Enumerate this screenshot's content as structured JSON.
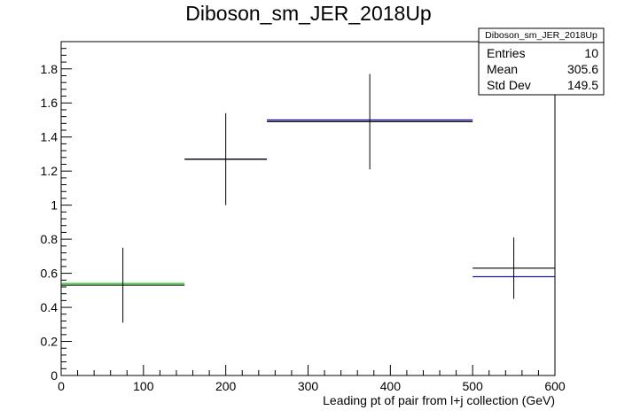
{
  "chart_data": {
    "type": "histogram",
    "title": "Diboson_sm_JER_2018Up",
    "xlabel": "Leading pt of pair from l+j collection (GeV)",
    "ylabel": "",
    "xlim": [
      0,
      600
    ],
    "ylim": [
      0,
      1.96
    ],
    "x_ticks": [
      0,
      100,
      200,
      300,
      400,
      500,
      600
    ],
    "y_ticks": [
      0,
      0.2,
      0.4,
      0.6,
      0.8,
      1,
      1.2,
      1.4,
      1.6,
      1.8
    ],
    "x_tick_labels": [
      "0",
      "100",
      "200",
      "300",
      "400",
      "500",
      "600"
    ],
    "y_tick_labels": [
      "0",
      "0.2",
      "0.4",
      "0.6",
      "0.8",
      "1",
      "1.2",
      "1.4",
      "1.6",
      "1.8"
    ],
    "grid": false,
    "series": [
      {
        "color": "#000000",
        "bins": [
          {
            "xlow": 0,
            "xhigh": 150,
            "value": 0.53,
            "err_low": 0.31,
            "err_high": 0.75
          },
          {
            "xlow": 150,
            "xhigh": 250,
            "value": 1.27,
            "err_low": 1.0,
            "err_high": 1.54
          },
          {
            "xlow": 250,
            "xhigh": 500,
            "value": 1.49,
            "err_low": 1.21,
            "err_high": 1.77
          },
          {
            "xlow": 500,
            "xhigh": 600,
            "value": 0.63,
            "err_low": 0.45,
            "err_high": 0.81
          }
        ]
      },
      {
        "color": "#0000cc",
        "bins": [
          {
            "xlow": 150,
            "xhigh": 250,
            "value": 1.27
          },
          {
            "xlow": 250,
            "xhigh": 500,
            "value": 1.5
          },
          {
            "xlow": 500,
            "xhigh": 600,
            "value": 0.58
          }
        ]
      },
      {
        "color": "#00cc00",
        "bins": [
          {
            "xlow": 0,
            "xhigh": 150,
            "value": 0.54
          }
        ]
      }
    ],
    "stats_box": {
      "title": "Diboson_sm_JER_2018Up",
      "rows": [
        {
          "label": "Entries",
          "value": "10"
        },
        {
          "label": "Mean",
          "value": "305.6"
        },
        {
          "label": "Std Dev",
          "value": "149.5"
        }
      ]
    }
  }
}
